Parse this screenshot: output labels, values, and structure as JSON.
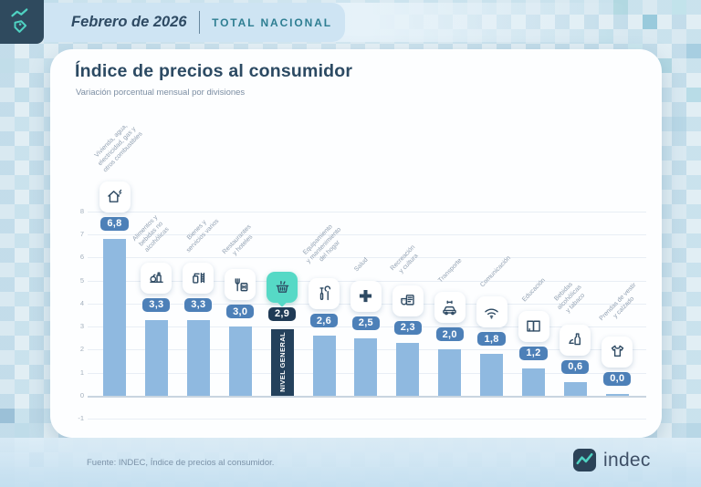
{
  "header": {
    "period": "Febrero de 2026",
    "scope": "TOTAL NACIONAL"
  },
  "footer": {
    "source": "Fuente: INDEC, Índice de precios al consumidor.",
    "brand": "indec"
  },
  "colors": {
    "accent_teal": "#56d9c6",
    "navy": "#2f4a5e",
    "header_band": "#cee4f3",
    "bar_blue": "#8fb9e0",
    "badge_blue": "#4d80b8",
    "highlight_navy": "#24415c",
    "highlight_badge": "#1f3a55"
  },
  "chart_data": {
    "type": "bar",
    "title": "Índice de precios al consumidor",
    "subtitle": "Variación porcentual mensual por divisiones",
    "ylim": [
      -1,
      8
    ],
    "yticks": [
      8,
      7,
      6,
      5,
      4,
      3,
      2,
      1,
      0,
      -1
    ],
    "grid": true,
    "legend_position": "none",
    "categories": [
      "Vivienda, agua, electricidad, gas y otros combustibles",
      "Alimentos y bebidas no alcohólicas",
      "Bienes y servicios varios",
      "Restaurantes y hoteles",
      "Nivel general",
      "Equipamiento y mantenimiento del hogar",
      "Salud",
      "Recreación y cultura",
      "Transporte",
      "Comunicación",
      "Educación",
      "Bebidas alcohólicas y tabaco",
      "Prendas de vestir y calzado"
    ],
    "category_lines": [
      [
        "Vivienda, agua,",
        "electricidad, gas y",
        "otros combustibles"
      ],
      [
        "Alimentos y",
        "bebidas no",
        "alcohólicas"
      ],
      [
        "Bienes y",
        "servicios varios"
      ],
      [
        "Restaurantes",
        "y hoteles"
      ],
      [],
      [
        "Equipamiento",
        "y mantenimiento",
        "del hogar"
      ],
      [
        "Salud"
      ],
      [
        "Recreación",
        "y cultura"
      ],
      [
        "Transporte"
      ],
      [
        "Comunicación"
      ],
      [
        "Educación"
      ],
      [
        "Bebidas",
        "alcohólicas",
        "y tabaco"
      ],
      [
        "Prendas de vestir",
        "y calzado"
      ]
    ],
    "values": [
      6.8,
      3.3,
      3.3,
      3.0,
      2.9,
      2.6,
      2.5,
      2.3,
      2.0,
      1.8,
      1.2,
      0.6,
      0.0
    ],
    "value_labels": [
      "6,8",
      "3,3",
      "3,3",
      "3,0",
      "2,9",
      "2,6",
      "2,5",
      "2,3",
      "2,0",
      "1,8",
      "1,2",
      "0,6",
      "0,0"
    ],
    "icons": [
      "house-utilities",
      "food-beverages",
      "personal-care",
      "restaurant-hotel",
      "basket",
      "home-equipment",
      "health-cross",
      "recreation-culture",
      "transport-car",
      "wifi-communication",
      "education-book",
      "alcohol-tobacco",
      "clothing-shirt"
    ],
    "highlight_index": 4,
    "highlight_label": "NIVEL GENERAL",
    "bar_color": "#8fb9e0",
    "highlight_color": "#24415c",
    "badge_color": "#4d80b8",
    "highlight_badge_color": "#1f3a55"
  }
}
